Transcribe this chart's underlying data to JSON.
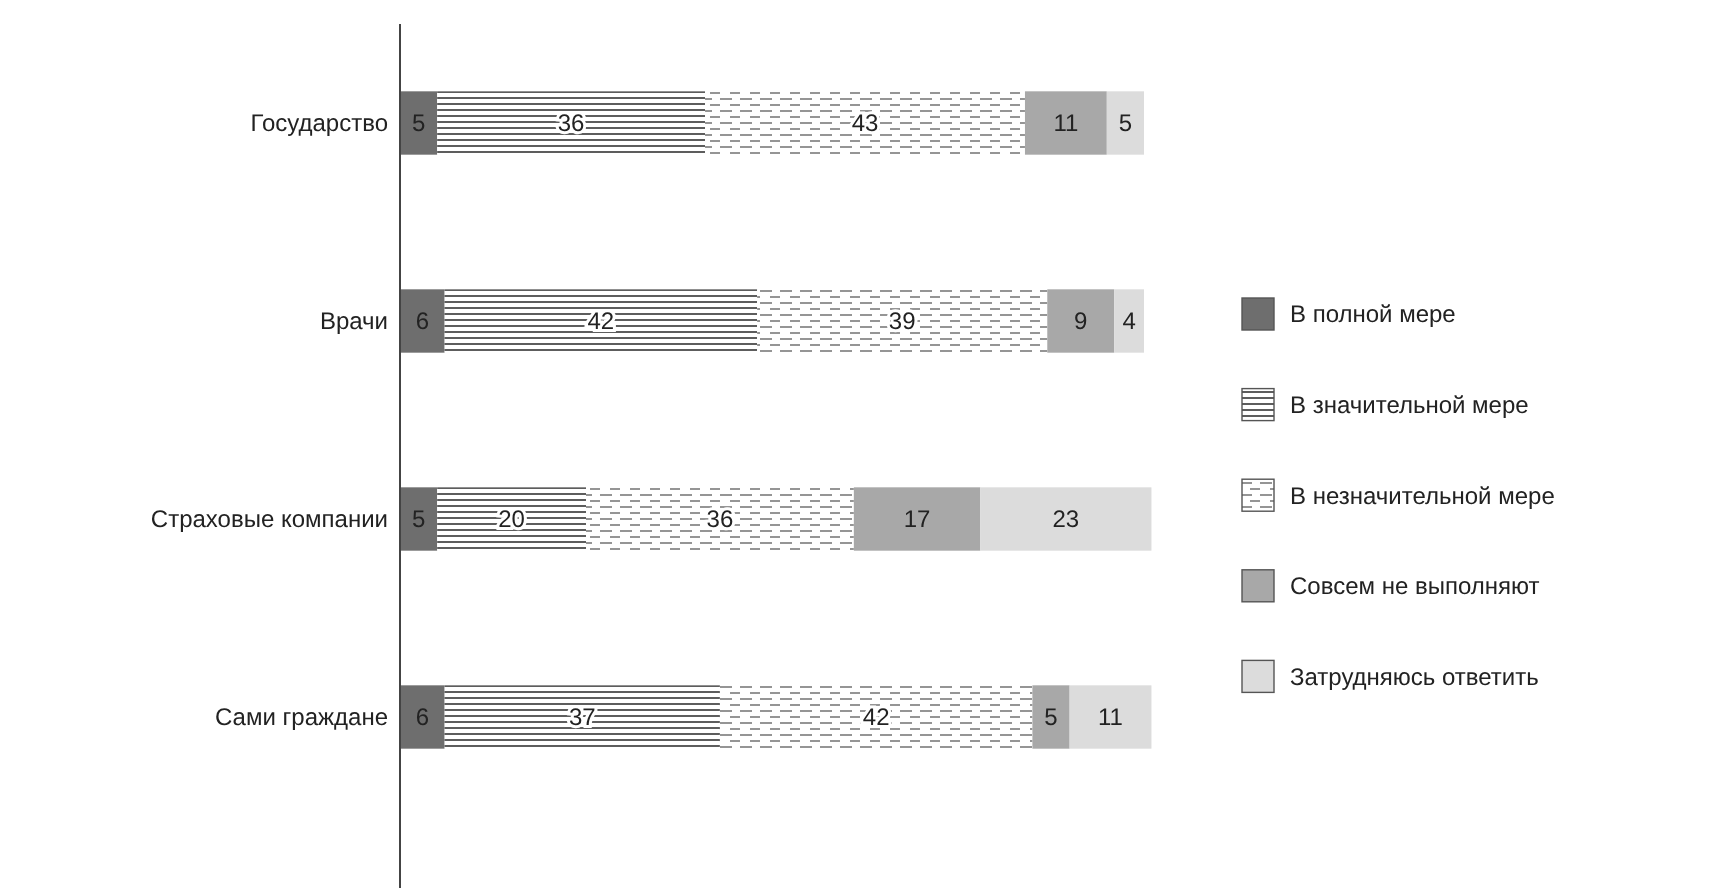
{
  "chart_data": {
    "type": "bar",
    "orientation": "horizontal",
    "stacked": true,
    "data_labels": true,
    "legend": "right",
    "categories": [
      "Государство",
      "Врачи",
      "Страховые компании",
      "Сами граждане"
    ],
    "series": [
      {
        "name": "В полной мере",
        "color": "#6e6e6e",
        "values": [
          5,
          6,
          5,
          6
        ]
      },
      {
        "name": "В значительной мере",
        "color": "#4a4a4a",
        "values": [
          36,
          42,
          20,
          37
        ]
      },
      {
        "name": "В незначительной мере",
        "color": "#7a7a7a",
        "values": [
          43,
          39,
          36,
          42
        ]
      },
      {
        "name": "Совсем не выполняют",
        "color": "#a8a8a8",
        "values": [
          11,
          9,
          17,
          5
        ]
      },
      {
        "name": "Затрудняюсь ответить",
        "color": "#dcdcdc",
        "values": [
          5,
          4,
          23,
          11
        ]
      }
    ]
  }
}
